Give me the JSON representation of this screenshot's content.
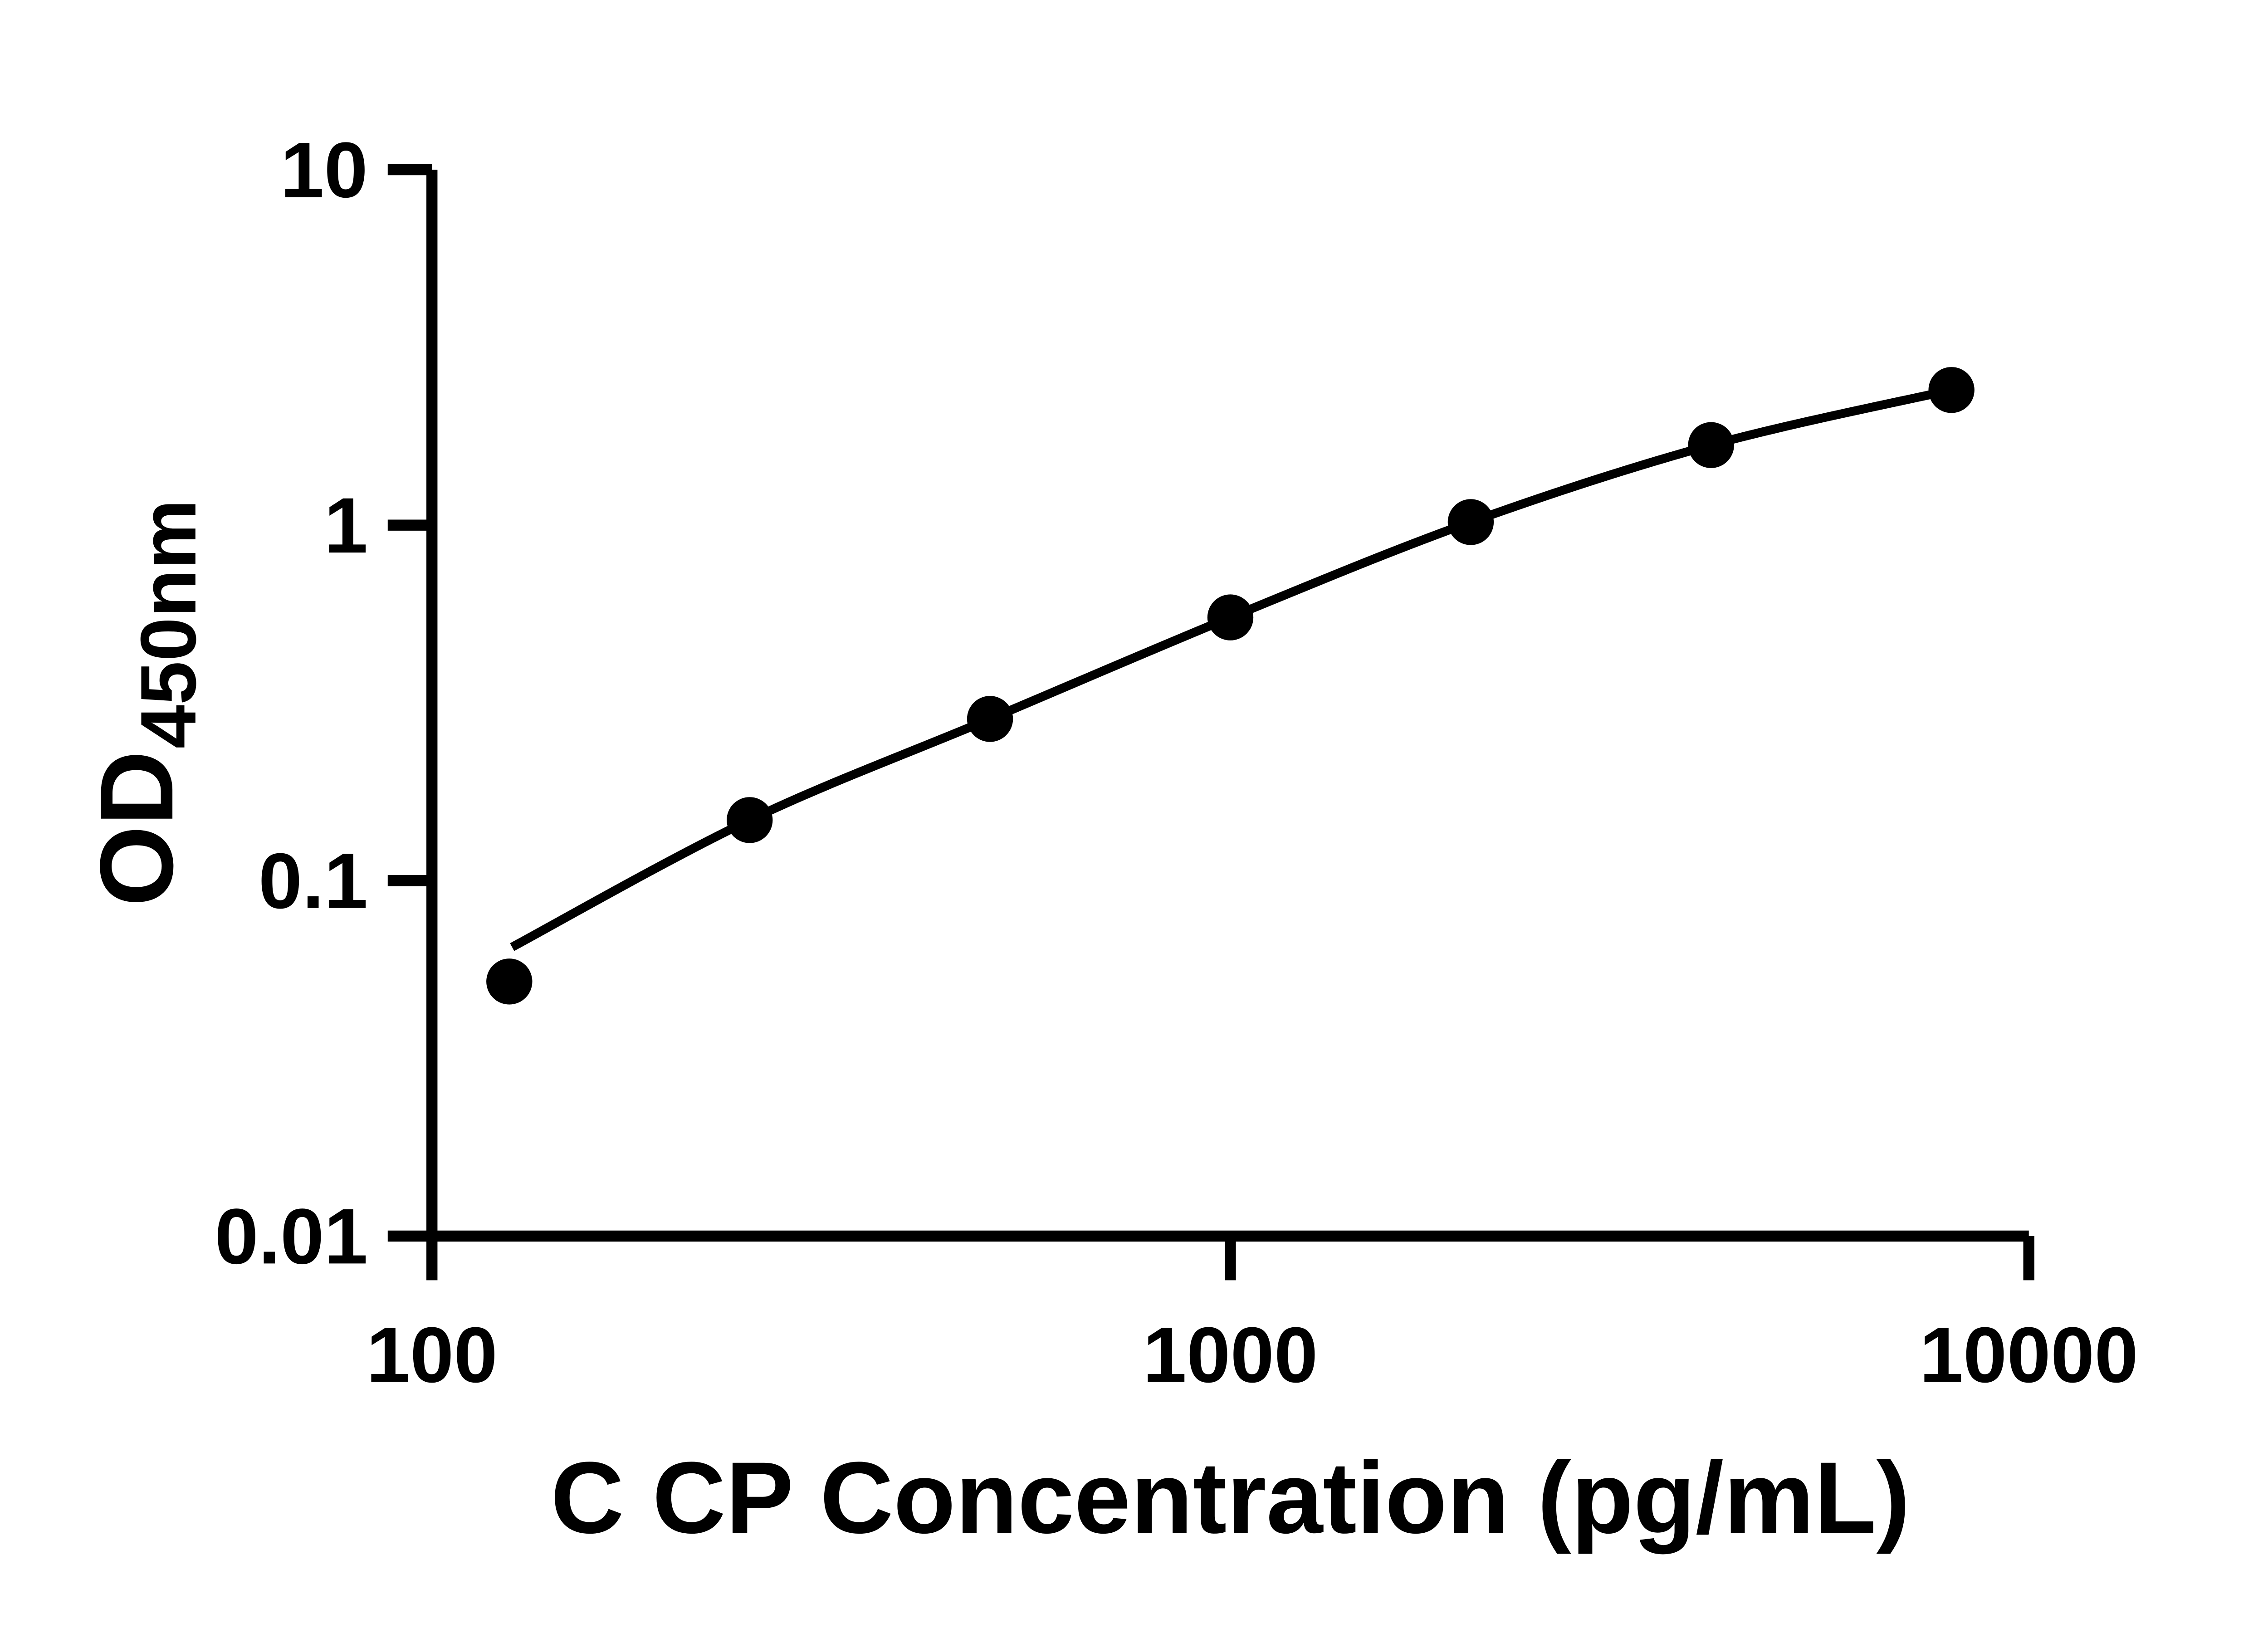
{
  "chart_data": {
    "type": "scatter",
    "title": "",
    "xlabel": "C CP Concentration (pg/mL)",
    "ylabel": "OD450nm",
    "ylabel_main": "OD",
    "ylabel_sub": "450nm",
    "x_scale": "log10",
    "y_scale": "log10",
    "xlim": [
      100,
      10000
    ],
    "ylim": [
      0.01,
      10
    ],
    "x_ticks": [
      100,
      1000,
      10000
    ],
    "x_tick_labels": [
      "100",
      "1000",
      "10000"
    ],
    "y_ticks": [
      10,
      1,
      0.1,
      0.01
    ],
    "y_tick_labels": [
      "10",
      "1",
      "0.1",
      "0.01"
    ],
    "grid": false,
    "legend_position": "none",
    "series": [
      {
        "name": "standard-points",
        "type": "scatter",
        "marker": "filled-circle",
        "color": "#000000",
        "x": [
          125,
          250,
          500,
          1000,
          2000,
          4000,
          8000
        ],
        "y": [
          0.052,
          0.148,
          0.285,
          0.55,
          1.02,
          1.68,
          2.4
        ]
      },
      {
        "name": "fitted-curve",
        "type": "line",
        "color": "#000000",
        "x": [
          126,
          250,
          500,
          1000,
          2000,
          4000,
          8000
        ],
        "y": [
          0.065,
          0.148,
          0.285,
          0.55,
          1.02,
          1.68,
          2.4
        ]
      }
    ]
  },
  "colors": {
    "foreground": "#000000",
    "background": "#ffffff"
  }
}
